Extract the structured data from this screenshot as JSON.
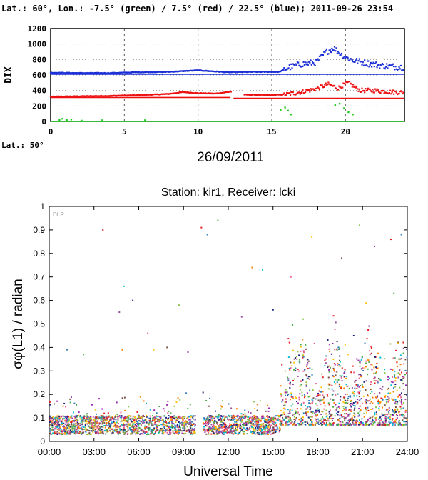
{
  "top_header": "Lat.: 60°, Lon.: -7.5° (green) / 7.5° (red) / 22.5° (blue); 2011-09-26 23:54",
  "top_lat_label": "Lat.: 50°",
  "top_date": "26/09/2011",
  "bottom_watermark": "DLR",
  "colors": {
    "green": "#22cc22",
    "red": "#ee1111",
    "blue": "#1a2fd6"
  },
  "chart_data": [
    {
      "type": "scatter",
      "title": "",
      "ylabel": "DIX",
      "xlabel": "",
      "xlim": [
        0,
        24
      ],
      "ylim": [
        0,
        1200
      ],
      "x_ticks": [
        "0",
        "5",
        "10",
        "15",
        "20"
      ],
      "y_ticks": [
        "0",
        "200",
        "400",
        "600",
        "800",
        "1000",
        "1200"
      ],
      "grid": true,
      "series": [
        {
          "name": "green",
          "color": "#22cc22",
          "points": [
            [
              0.6,
              20
            ],
            [
              0.8,
              35
            ],
            [
              1.1,
              18
            ],
            [
              1.4,
              25
            ],
            [
              2.1,
              10
            ],
            [
              3.5,
              15
            ],
            [
              6.4,
              15
            ],
            [
              15.6,
              150
            ],
            [
              15.9,
              180
            ],
            [
              16.1,
              140
            ],
            [
              16.3,
              90
            ],
            [
              19.3,
              210
            ],
            [
              19.6,
              230
            ],
            [
              19.9,
              170
            ],
            [
              20.2,
              120
            ],
            [
              20.5,
              90
            ]
          ],
          "baseline": 0
        },
        {
          "name": "red",
          "color": "#ee1111",
          "points": [
            [
              0,
              320
            ],
            [
              2,
              325
            ],
            [
              4,
              330
            ],
            [
              6,
              340
            ],
            [
              8,
              355
            ],
            [
              9,
              380
            ],
            [
              10,
              365
            ],
            [
              11.2,
              360
            ],
            [
              12.2,
              385
            ],
            [
              13.2,
              345
            ],
            [
              15,
              340
            ],
            [
              16,
              350
            ],
            [
              17,
              380
            ],
            [
              18,
              420
            ],
            [
              18.8,
              480
            ],
            [
              19.5,
              430
            ],
            [
              20.2,
              500
            ],
            [
              21,
              400
            ],
            [
              22,
              400
            ],
            [
              23,
              380
            ],
            [
              23.9,
              375
            ]
          ],
          "baseline": 300
        },
        {
          "name": "blue",
          "color": "#1a2fd6",
          "points": [
            [
              0,
              630
            ],
            [
              2,
              625
            ],
            [
              4,
              625
            ],
            [
              6,
              635
            ],
            [
              8,
              640
            ],
            [
              10,
              660
            ],
            [
              12,
              635
            ],
            [
              14,
              640
            ],
            [
              15.5,
              640
            ],
            [
              16.2,
              700
            ],
            [
              17,
              740
            ],
            [
              18,
              760
            ],
            [
              18.7,
              900
            ],
            [
              19.2,
              950
            ],
            [
              19.8,
              850
            ],
            [
              20.5,
              790
            ],
            [
              21.5,
              750
            ],
            [
              22.5,
              720
            ],
            [
              23.9,
              700
            ]
          ],
          "baseline": 610
        }
      ]
    },
    {
      "type": "scatter",
      "title": "Station: kir1, Receiver: lcki",
      "xlabel": "Universal Time",
      "ylabel": "σφ(L1) / radian",
      "xlim": [
        0,
        24
      ],
      "ylim": [
        0,
        1
      ],
      "x_ticks": [
        "00:00",
        "03:00",
        "06:00",
        "09:00",
        "12:00",
        "15:00",
        "18:00",
        "21:00",
        "24:00"
      ],
      "y_ticks": [
        "0",
        "0.1",
        "0.2",
        "0.3",
        "0.4",
        "0.5",
        "0.6",
        "0.7",
        "0.8",
        "0.9",
        "1"
      ],
      "grid": false,
      "baseline_level_quiet": 0.07,
      "active_interval": [
        15.5,
        24
      ],
      "outliers": [
        [
          3.6,
          0.9
        ],
        [
          1.2,
          0.39
        ],
        [
          2.3,
          0.37
        ],
        [
          4.7,
          0.55
        ],
        [
          4.9,
          0.39
        ],
        [
          5.0,
          0.66
        ],
        [
          5.6,
          0.6
        ],
        [
          6.6,
          0.46
        ],
        [
          7.0,
          0.39
        ],
        [
          7.9,
          0.4
        ],
        [
          8.7,
          0.58
        ],
        [
          9.3,
          0.38
        ],
        [
          10.2,
          0.91
        ],
        [
          10.6,
          0.88
        ],
        [
          11.3,
          0.94
        ],
        [
          12.9,
          0.53
        ],
        [
          13.6,
          0.74
        ],
        [
          14.3,
          0.73
        ],
        [
          15.0,
          0.56
        ],
        [
          16.2,
          0.7
        ],
        [
          17.6,
          0.87
        ],
        [
          19.6,
          0.78
        ],
        [
          20.8,
          0.92
        ],
        [
          21.8,
          0.83
        ],
        [
          22.9,
          0.86
        ],
        [
          23.6,
          0.88
        ],
        [
          23.1,
          0.63
        ]
      ]
    }
  ]
}
